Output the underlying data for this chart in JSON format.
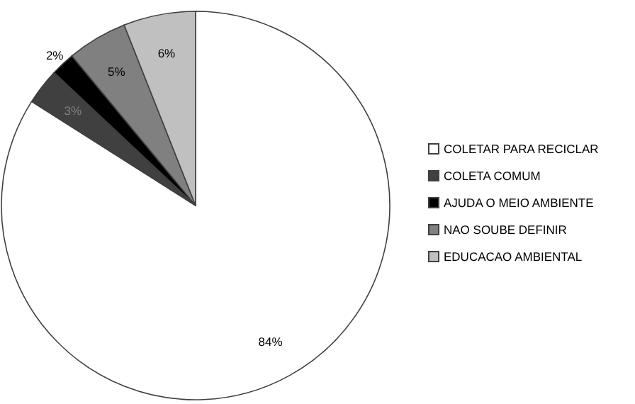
{
  "chart_data": {
    "type": "pie",
    "categories": [
      "COLETAR PARA RECICLAR",
      "COLETA COMUM",
      "AJUDA O MEIO AMBIENTE",
      "NAO SOUBE DEFINIR",
      "EDUCACAO AMBIENTAL"
    ],
    "values": [
      84,
      3,
      2,
      5,
      6
    ],
    "colors": [
      "#ffffff",
      "#404040",
      "#000000",
      "#808080",
      "#c0c0c0"
    ],
    "value_labels": [
      "84%",
      "3%",
      "2%",
      "5%",
      "6%"
    ],
    "legend": "right"
  }
}
